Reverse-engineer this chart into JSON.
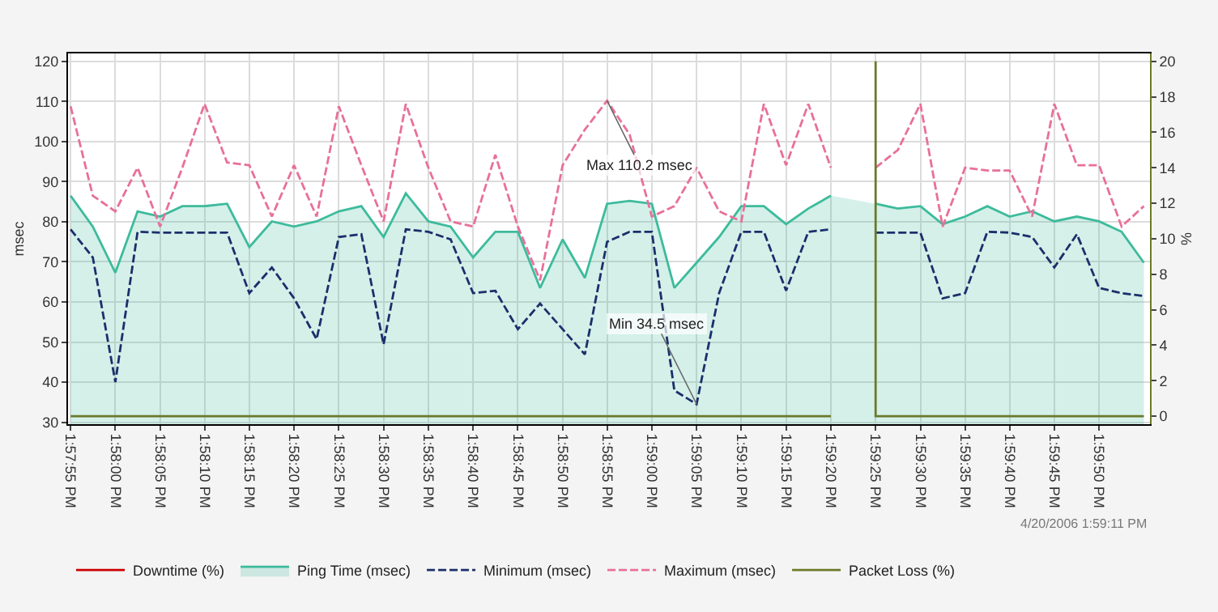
{
  "chart_data": {
    "type": "line",
    "ylabel": "msec",
    "y2label": "%",
    "x": [
      13.96528,
      13.96597,
      13.96667,
      13.96736,
      13.96806,
      13.96875,
      13.96944,
      13.97014,
      13.97083,
      13.97153,
      13.97222,
      13.97292,
      13.97361,
      13.97431,
      13.975,
      13.97569,
      13.97639,
      13.97708,
      13.97778,
      13.97847,
      13.97917,
      13.97986,
      13.98056,
      13.98125,
      13.98194,
      13.98264,
      13.98333,
      13.98403,
      13.98472,
      13.98542,
      13.98611,
      13.98681,
      13.9875,
      13.98819,
      13.98889,
      13.98958,
      13.99028,
      13.99097,
      13.99167,
      13.99236,
      13.99306,
      13.99375,
      13.99444,
      13.99514,
      13.99583,
      13.99653,
      13.99722,
      13.99792,
      13.99861
    ],
    "series": [
      {
        "name": "Downtime (%)",
        "color": "#cc0000",
        "axis": "y2",
        "values": [
          null,
          null,
          null,
          null,
          null,
          null,
          null,
          null,
          null,
          null,
          null,
          null,
          null,
          null,
          null,
          null,
          null,
          null,
          null,
          null,
          null,
          null,
          null,
          null,
          null,
          null,
          null,
          null,
          null,
          null,
          null,
          null,
          null,
          null,
          null,
          null,
          null,
          null,
          null,
          null,
          null,
          null,
          null,
          null,
          null,
          null,
          null,
          null,
          null
        ]
      },
      {
        "name": "Ping Time (msec)",
        "color": "#3dbb9c",
        "type": "area",
        "values": [
          86.5,
          78.8,
          67.3,
          82.6,
          81.3,
          83.9,
          83.9,
          84.5,
          73.7,
          80.1,
          78.8,
          80.1,
          82.6,
          83.9,
          76.2,
          87.1,
          80.1,
          78.8,
          71.1,
          77.5,
          77.5,
          63.5,
          75.6,
          66.0,
          84.5,
          85.2,
          84.5,
          63.5,
          69.8,
          76.2,
          83.9,
          83.9,
          79.4,
          83.3,
          86.5,
          null,
          84.5,
          83.3,
          83.9,
          79.4,
          81.3,
          83.9,
          81.3,
          82.6,
          80.1,
          81.3,
          80.1,
          77.5,
          69.8
        ]
      },
      {
        "name": "Minimum (msec)",
        "color": "#1b2f6b",
        "line_style": "dashed",
        "values": [
          78.1,
          71.1,
          40,
          77.5,
          77.3,
          77.3,
          77.3,
          77.3,
          62.2,
          68.6,
          60.9,
          50.7,
          76.2,
          76.9,
          49.4,
          78.1,
          77.5,
          75.6,
          62.2,
          62.8,
          53.2,
          59.6,
          53.2,
          46.9,
          75,
          77.5,
          77.5,
          37.9,
          34.5,
          62.2,
          77.5,
          77.5,
          62.8,
          77.5,
          78.1,
          null,
          77.3,
          77.3,
          77.3,
          60.9,
          62.2,
          77.5,
          77.3,
          76.2,
          68.6,
          76.9,
          63.5,
          62.2,
          61.5
        ]
      },
      {
        "name": "Maximum (msec)",
        "color": "#e8709a",
        "line_style": "dashed",
        "values": [
          108.8,
          86.5,
          82.6,
          93.5,
          78.8,
          93.5,
          109.4,
          94.8,
          94.1,
          81.3,
          94.1,
          81.3,
          108.8,
          94.1,
          80.1,
          109.4,
          93.5,
          80.1,
          78.8,
          96.7,
          78.8,
          65.4,
          94.1,
          103,
          110.2,
          101.8,
          81.3,
          83.9,
          93.5,
          82.6,
          80.1,
          109.4,
          94.1,
          109.4,
          93.5,
          null,
          93.5,
          97.9,
          109.4,
          78.8,
          93.5,
          92.8,
          92.8,
          81.3,
          109.4,
          94.1,
          94.1,
          78.8,
          83.9
        ]
      },
      {
        "name": "Packet Loss (%)",
        "color": "#6b7a2a",
        "axis": "y2",
        "x": [
          13.96528,
          13.98889,
          13.98958,
          13.99028,
          13.99028,
          13.99861
        ],
        "values": [
          0,
          0,
          null,
          20,
          0,
          0
        ]
      }
    ],
    "xlim": [
      13.9652,
      13.9988
    ],
    "xticks": [
      {
        "value": 13.96528,
        "label": "1:57:55 PM"
      },
      {
        "value": 13.96667,
        "label": "1:58:00 PM"
      },
      {
        "value": 13.96806,
        "label": "1:58:05 PM"
      },
      {
        "value": 13.96944,
        "label": "1:58:10 PM"
      },
      {
        "value": 13.97083,
        "label": "1:58:15 PM"
      },
      {
        "value": 13.97222,
        "label": "1:58:20 PM"
      },
      {
        "value": 13.97361,
        "label": "1:58:25 PM"
      },
      {
        "value": 13.975,
        "label": "1:58:30 PM"
      },
      {
        "value": 13.97639,
        "label": "1:58:35 PM"
      },
      {
        "value": 13.97778,
        "label": "1:58:40 PM"
      },
      {
        "value": 13.97917,
        "label": "1:58:45 PM"
      },
      {
        "value": 13.98056,
        "label": "1:58:50 PM"
      },
      {
        "value": 13.98194,
        "label": "1:58:55 PM"
      },
      {
        "value": 13.98333,
        "label": "1:59:00 PM"
      },
      {
        "value": 13.98472,
        "label": "1:59:05 PM"
      },
      {
        "value": 13.98611,
        "label": "1:59:10 PM"
      },
      {
        "value": 13.9875,
        "label": "1:59:15 PM"
      },
      {
        "value": 13.98889,
        "label": "1:59:20 PM"
      },
      {
        "value": 13.99028,
        "label": "1:59:25 PM"
      },
      {
        "value": 13.99167,
        "label": "1:59:30 PM"
      },
      {
        "value": 13.99306,
        "label": "1:59:35 PM"
      },
      {
        "value": 13.99444,
        "label": "1:59:40 PM"
      },
      {
        "value": 13.99583,
        "label": "1:59:45 PM"
      },
      {
        "value": 13.99722,
        "label": "1:59:50 PM"
      }
    ],
    "ylim": [
      29.5,
      122
    ],
    "yticks": [
      30,
      40,
      50,
      60,
      70,
      80,
      90,
      100,
      110,
      120
    ],
    "y2lim": [
      -0.45,
      20.44
    ],
    "y2ticks": [
      0,
      2,
      4,
      6,
      8,
      10,
      12,
      14,
      16,
      18,
      20
    ],
    "annotations": [
      {
        "text": "Max 110.2 msec",
        "x": 13.98194,
        "y": 110.2
      },
      {
        "text": "Min 34.5 msec",
        "x": 13.98472,
        "y": 34.5
      },
      "4/20/2006 1:59:11 PM"
    ],
    "grid": true,
    "legend": "bottom",
    "line_style": "solid",
    "marker": "none"
  }
}
